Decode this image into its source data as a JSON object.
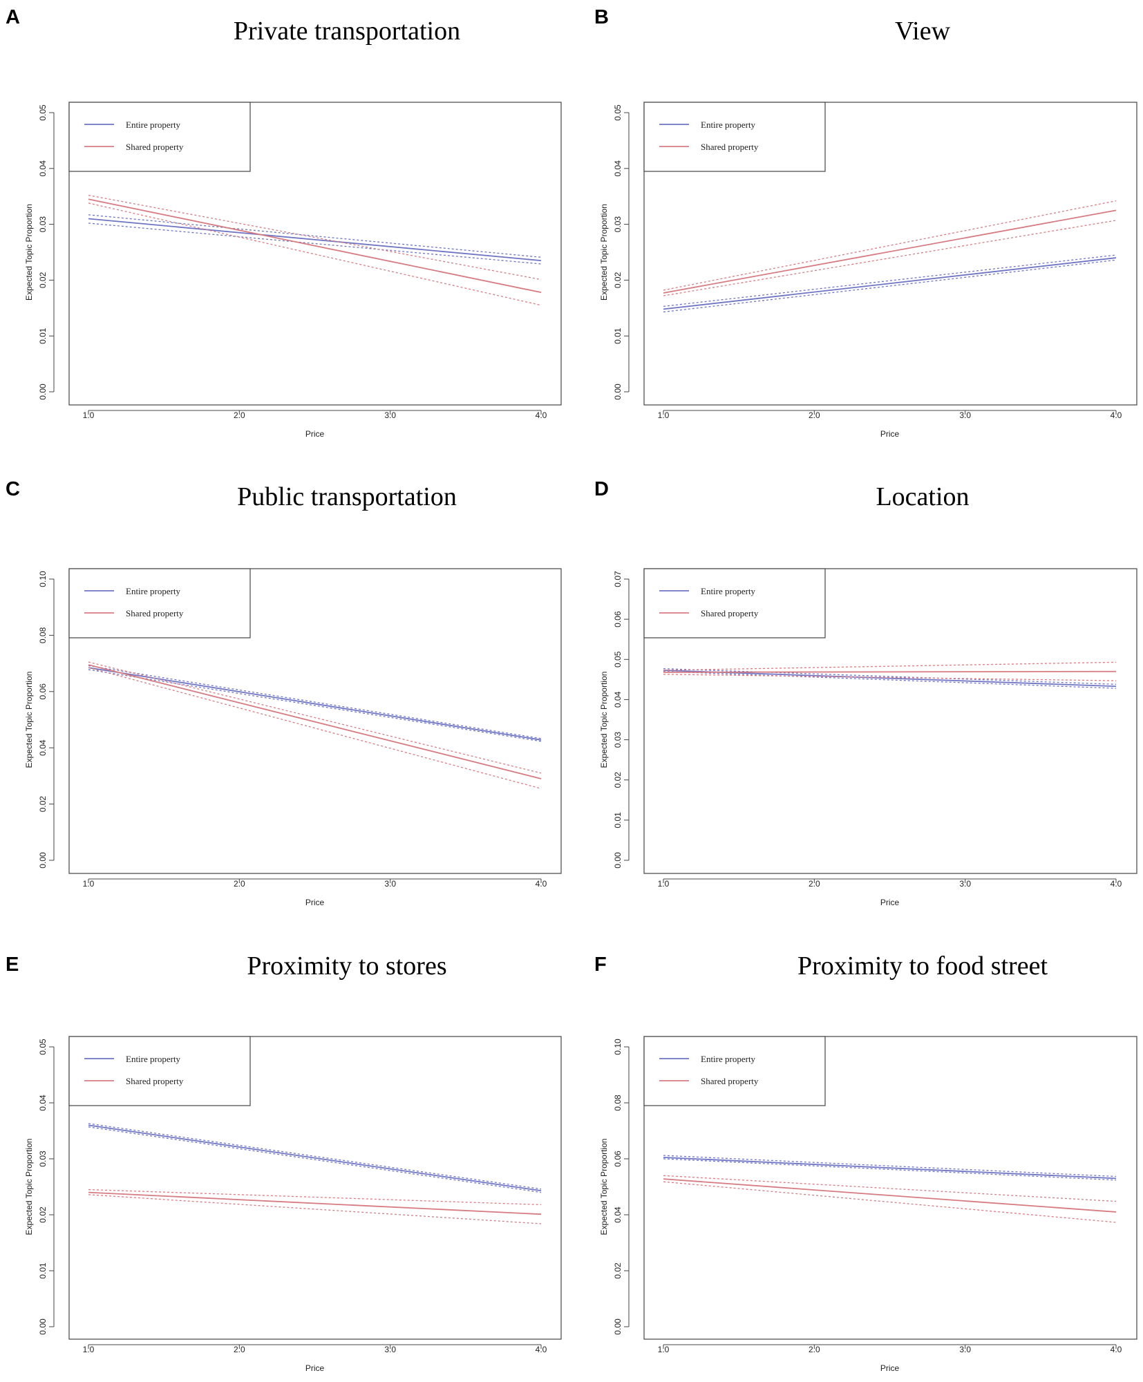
{
  "colors": {
    "entire": "#6e74c4",
    "shared": "#d77b82",
    "frame": "#444444"
  },
  "chart_data": [
    {
      "panel": "A",
      "title": "Private transportation",
      "type": "line",
      "xlabel": "Price",
      "ylabel": "Expected Topic Proportion",
      "xlim": [
        1.0,
        4.0
      ],
      "ylim": [
        0.0,
        0.05
      ],
      "xticks": [
        1.0,
        2.0,
        3.0,
        4.0
      ],
      "xtick_labels": [
        "1.0",
        "2.0",
        "3.0",
        "4.0"
      ],
      "yticks": [
        0.0,
        0.01,
        0.02,
        0.03,
        0.04,
        0.05
      ],
      "ytick_labels": [
        "0.00",
        "0.01",
        "0.02",
        "0.03",
        "0.04",
        "0.05"
      ],
      "legend": [
        "Entire property",
        "Shared property"
      ],
      "series": [
        {
          "name": "Entire property",
          "x": [
            1.0,
            4.0
          ],
          "y": [
            0.031,
            0.0235
          ],
          "lower": [
            0.0302,
            0.0229
          ],
          "upper": [
            0.0317,
            0.0241
          ]
        },
        {
          "name": "Shared property",
          "x": [
            1.0,
            4.0
          ],
          "y": [
            0.0345,
            0.0178
          ],
          "lower": [
            0.0338,
            0.0155
          ],
          "upper": [
            0.0352,
            0.0201
          ]
        }
      ]
    },
    {
      "panel": "B",
      "title": "View",
      "type": "line",
      "xlabel": "Price",
      "ylabel": "Expected Topic Proportion",
      "xlim": [
        1.0,
        4.0
      ],
      "ylim": [
        0.0,
        0.05
      ],
      "xticks": [
        1.0,
        2.0,
        3.0,
        4.0
      ],
      "xtick_labels": [
        "1.0",
        "2.0",
        "3.0",
        "4.0"
      ],
      "yticks": [
        0.0,
        0.01,
        0.02,
        0.03,
        0.04,
        0.05
      ],
      "ytick_labels": [
        "0.00",
        "0.01",
        "0.02",
        "0.03",
        "0.04",
        "0.05"
      ],
      "legend": [
        "Entire property",
        "Shared property"
      ],
      "series": [
        {
          "name": "Entire property",
          "x": [
            1.0,
            4.0
          ],
          "y": [
            0.0148,
            0.024
          ],
          "lower": [
            0.0143,
            0.0236
          ],
          "upper": [
            0.0153,
            0.0245
          ]
        },
        {
          "name": "Shared property",
          "x": [
            1.0,
            4.0
          ],
          "y": [
            0.0177,
            0.0325
          ],
          "lower": [
            0.0172,
            0.0307
          ],
          "upper": [
            0.0182,
            0.0342
          ]
        }
      ]
    },
    {
      "panel": "C",
      "title": "Public transportation",
      "type": "line",
      "xlabel": "Price",
      "ylabel": "Expected Topic Proportion",
      "xlim": [
        1.0,
        4.0
      ],
      "ylim": [
        0.0,
        0.1
      ],
      "xticks": [
        1.0,
        2.0,
        3.0,
        4.0
      ],
      "xtick_labels": [
        "1.0",
        "2.0",
        "3.0",
        "4.0"
      ],
      "yticks": [
        0.0,
        0.02,
        0.04,
        0.06,
        0.08,
        0.1
      ],
      "ytick_labels": [
        "0.00",
        "0.02",
        "0.04",
        "0.06",
        "0.08",
        "0.10"
      ],
      "legend": [
        "Entire property",
        "Shared property"
      ],
      "series": [
        {
          "name": "Entire property",
          "x": [
            1.0,
            4.0
          ],
          "y": [
            0.0685,
            0.0428
          ],
          "lower": [
            0.0678,
            0.0423
          ],
          "upper": [
            0.0692,
            0.0433
          ]
        },
        {
          "name": "Shared property",
          "x": [
            1.0,
            4.0
          ],
          "y": [
            0.0695,
            0.029
          ],
          "lower": [
            0.0685,
            0.0255
          ],
          "upper": [
            0.0705,
            0.031
          ]
        }
      ]
    },
    {
      "panel": "D",
      "title": "Location",
      "type": "line",
      "xlabel": "Price",
      "ylabel": "Expected Topic Proportion",
      "xlim": [
        1.0,
        4.0
      ],
      "ylim": [
        0.0,
        0.07
      ],
      "xticks": [
        1.0,
        2.0,
        3.0,
        4.0
      ],
      "xtick_labels": [
        "1.0",
        "2.0",
        "3.0",
        "4.0"
      ],
      "yticks": [
        0.0,
        0.01,
        0.02,
        0.03,
        0.04,
        0.05,
        0.06,
        0.07
      ],
      "ytick_labels": [
        "0.00",
        "0.01",
        "0.02",
        "0.03",
        "0.04",
        "0.05",
        "0.06",
        "0.07"
      ],
      "legend": [
        "Entire property",
        "Shared property"
      ],
      "series": [
        {
          "name": "Entire property",
          "x": [
            1.0,
            4.0
          ],
          "y": [
            0.0473,
            0.0433
          ],
          "lower": [
            0.047,
            0.0428
          ],
          "upper": [
            0.0477,
            0.0438
          ]
        },
        {
          "name": "Shared property",
          "x": [
            1.0,
            4.0
          ],
          "y": [
            0.0468,
            0.047
          ],
          "lower": [
            0.0463,
            0.0447
          ],
          "upper": [
            0.0473,
            0.0493
          ]
        }
      ]
    },
    {
      "panel": "E",
      "title": "Proximity to stores",
      "type": "line",
      "xlabel": "Price",
      "ylabel": "Expected Topic Proportion",
      "xlim": [
        1.0,
        4.0
      ],
      "ylim": [
        0.0,
        0.05
      ],
      "xticks": [
        1.0,
        2.0,
        3.0,
        4.0
      ],
      "xtick_labels": [
        "1.0",
        "2.0",
        "3.0",
        "4.0"
      ],
      "yticks": [
        0.0,
        0.01,
        0.02,
        0.03,
        0.04,
        0.05
      ],
      "ytick_labels": [
        "0.00",
        "0.01",
        "0.02",
        "0.03",
        "0.04",
        "0.05"
      ],
      "legend": [
        "Entire property",
        "Shared property"
      ],
      "series": [
        {
          "name": "Entire property",
          "x": [
            1.0,
            4.0
          ],
          "y": [
            0.036,
            0.0243
          ],
          "lower": [
            0.0357,
            0.024
          ],
          "upper": [
            0.0363,
            0.0246
          ]
        },
        {
          "name": "Shared property",
          "x": [
            1.0,
            4.0
          ],
          "y": [
            0.024,
            0.0201
          ],
          "lower": [
            0.0236,
            0.0184
          ],
          "upper": [
            0.0245,
            0.0218
          ]
        }
      ]
    },
    {
      "panel": "F",
      "title": "Proximity to food street",
      "type": "line",
      "xlabel": "Price",
      "ylabel": "Expected Topic Proportion",
      "xlim": [
        1.0,
        4.0
      ],
      "ylim": [
        0.0,
        0.1
      ],
      "xticks": [
        1.0,
        2.0,
        3.0,
        4.0
      ],
      "xtick_labels": [
        "1.0",
        "2.0",
        "3.0",
        "4.0"
      ],
      "yticks": [
        0.0,
        0.02,
        0.04,
        0.06,
        0.08,
        0.1
      ],
      "ytick_labels": [
        "0.00",
        "0.02",
        "0.04",
        "0.06",
        "0.08",
        "0.10"
      ],
      "legend": [
        "Entire property",
        "Shared property"
      ],
      "series": [
        {
          "name": "Entire property",
          "x": [
            1.0,
            4.0
          ],
          "y": [
            0.0605,
            0.053
          ],
          "lower": [
            0.06,
            0.0524
          ],
          "upper": [
            0.0612,
            0.0537
          ]
        },
        {
          "name": "Shared property",
          "x": [
            1.0,
            4.0
          ],
          "y": [
            0.0528,
            0.041
          ],
          "lower": [
            0.0518,
            0.0373
          ],
          "upper": [
            0.054,
            0.0448
          ]
        }
      ]
    }
  ]
}
